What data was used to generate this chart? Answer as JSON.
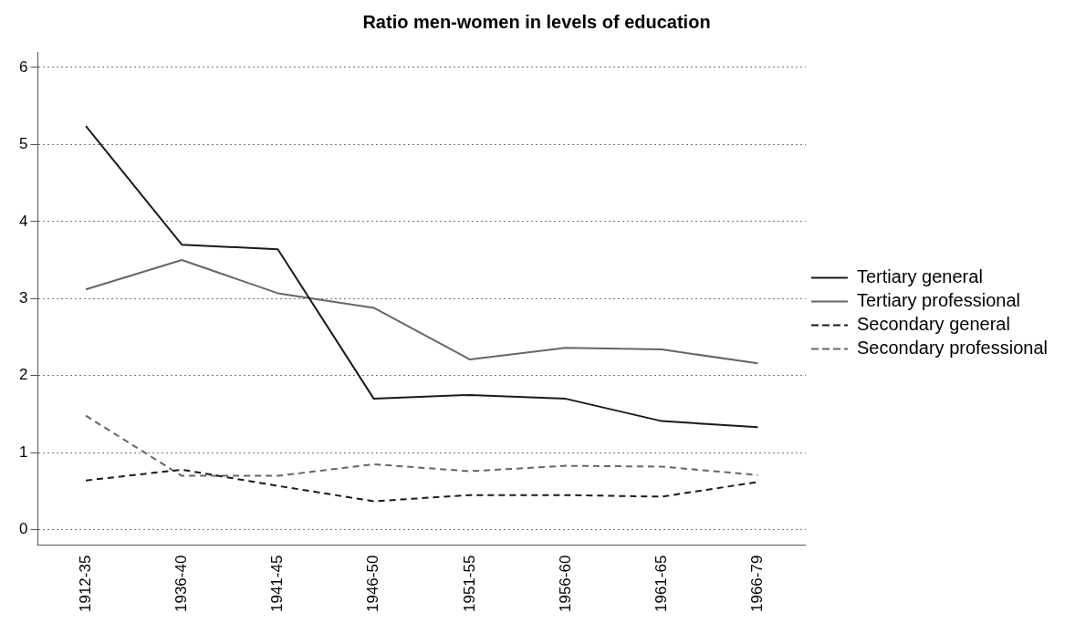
{
  "chart_data": {
    "type": "line",
    "title": "Ratio men-women in levels of education",
    "categories": [
      "1912-35",
      "1936-40",
      "1941-45",
      "1946-50",
      "1951-55",
      "1956-60",
      "1961-65",
      "1966-79"
    ],
    "series": [
      {
        "name": "Tertiary general",
        "color": "#1a1a1a",
        "line_style": "solid",
        "values": [
          5.24,
          3.7,
          3.64,
          1.7,
          1.75,
          1.7,
          1.41,
          1.33
        ]
      },
      {
        "name": "Tertiary professional",
        "color": "#666666",
        "line_style": "solid",
        "values": [
          3.12,
          3.5,
          3.07,
          2.88,
          2.21,
          2.36,
          2.34,
          2.16
        ]
      },
      {
        "name": "Secondary general",
        "color": "#1a1a1a",
        "line_style": "dashed",
        "values": [
          0.64,
          0.78,
          0.57,
          0.37,
          0.45,
          0.45,
          0.43,
          0.62
        ]
      },
      {
        "name": "Secondary professional",
        "color": "#666666",
        "line_style": "dashed",
        "values": [
          1.48,
          0.7,
          0.7,
          0.85,
          0.76,
          0.83,
          0.82,
          0.71
        ]
      }
    ],
    "ylim": [
      -0.2,
      6.2
    ],
    "yticks": [
      0,
      1,
      2,
      3,
      4,
      5,
      6
    ],
    "grid": "y",
    "legend": "right",
    "marker": "none"
  }
}
